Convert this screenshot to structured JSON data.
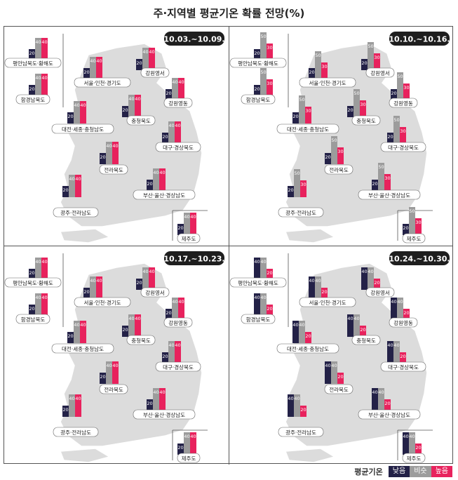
{
  "title": "주·지역별 평균기온 확률 전망(%)",
  "colors": {
    "low": "#232147",
    "normal": "#9c9c9c",
    "high": "#e8225d",
    "map_fill": "#dcdcdc",
    "map_stroke": "#ffffff"
  },
  "legend": {
    "title": "평균기온",
    "low": "낮음",
    "normal": "비슷",
    "high": "높음"
  },
  "chart_data": [
    {
      "type": "bar",
      "period": "10.03.~10.09.",
      "series_names": [
        "낮음",
        "비슷",
        "높음"
      ],
      "regions": [
        {
          "name": "평안남북도·황해도",
          "values": [
            20,
            40,
            40
          ]
        },
        {
          "name": "함경남북도",
          "values": [
            20,
            40,
            40
          ]
        },
        {
          "name": "서울·인천·경기도",
          "values": [
            20,
            40,
            40
          ]
        },
        {
          "name": "강원영서",
          "values": [
            20,
            40,
            40
          ]
        },
        {
          "name": "강원영동",
          "values": [
            20,
            40,
            40
          ]
        },
        {
          "name": "대전·세종·충청남도",
          "values": [
            20,
            40,
            40
          ]
        },
        {
          "name": "충청북도",
          "values": [
            20,
            40,
            40
          ]
        },
        {
          "name": "대구·경상북도",
          "values": [
            20,
            40,
            40
          ]
        },
        {
          "name": "전라북도",
          "values": [
            20,
            40,
            40
          ]
        },
        {
          "name": "부산·울산·경상남도",
          "values": [
            20,
            40,
            40
          ]
        },
        {
          "name": "광주·전라남도",
          "values": [
            20,
            40,
            40
          ]
        },
        {
          "name": "제주도",
          "values": [
            20,
            40,
            40
          ]
        }
      ]
    },
    {
      "type": "bar",
      "period": "10.10.~10.16.",
      "series_names": [
        "낮음",
        "비슷",
        "높음"
      ],
      "regions": [
        {
          "name": "평안남북도·황해도",
          "values": [
            20,
            50,
            30
          ]
        },
        {
          "name": "함경남북도",
          "values": [
            20,
            50,
            30
          ]
        },
        {
          "name": "서울·인천·경기도",
          "values": [
            20,
            50,
            30
          ]
        },
        {
          "name": "강원영서",
          "values": [
            20,
            50,
            30
          ]
        },
        {
          "name": "강원영동",
          "values": [
            20,
            50,
            30
          ]
        },
        {
          "name": "대전·세종·충청남도",
          "values": [
            20,
            50,
            30
          ]
        },
        {
          "name": "충청북도",
          "values": [
            20,
            50,
            30
          ]
        },
        {
          "name": "대구·경상북도",
          "values": [
            20,
            50,
            30
          ]
        },
        {
          "name": "전라북도",
          "values": [
            20,
            50,
            30
          ]
        },
        {
          "name": "부산·울산·경상남도",
          "values": [
            20,
            50,
            30
          ]
        },
        {
          "name": "광주·전라남도",
          "values": [
            20,
            50,
            30
          ]
        },
        {
          "name": "제주도",
          "values": [
            20,
            50,
            30
          ]
        }
      ]
    },
    {
      "type": "bar",
      "period": "10.17.~10.23.",
      "series_names": [
        "낮음",
        "비슷",
        "높음"
      ],
      "regions": [
        {
          "name": "평안남북도·황해도",
          "values": [
            20,
            40,
            40
          ]
        },
        {
          "name": "함경남북도",
          "values": [
            20,
            40,
            40
          ]
        },
        {
          "name": "서울·인천·경기도",
          "values": [
            20,
            40,
            40
          ]
        },
        {
          "name": "강원영서",
          "values": [
            20,
            40,
            40
          ]
        },
        {
          "name": "강원영동",
          "values": [
            20,
            40,
            40
          ]
        },
        {
          "name": "대전·세종·충청남도",
          "values": [
            20,
            40,
            40
          ]
        },
        {
          "name": "충청북도",
          "values": [
            20,
            40,
            40
          ]
        },
        {
          "name": "대구·경상북도",
          "values": [
            20,
            40,
            40
          ]
        },
        {
          "name": "전라북도",
          "values": [
            20,
            40,
            40
          ]
        },
        {
          "name": "부산·울산·경상남도",
          "values": [
            20,
            40,
            40
          ]
        },
        {
          "name": "광주·전라남도",
          "values": [
            20,
            40,
            40
          ]
        },
        {
          "name": "제주도",
          "values": [
            20,
            40,
            40
          ]
        }
      ]
    },
    {
      "type": "bar",
      "period": "10.24.~10.30.",
      "series_names": [
        "낮음",
        "비슷",
        "높음"
      ],
      "regions": [
        {
          "name": "평안남북도·황해도",
          "values": [
            40,
            40,
            20
          ]
        },
        {
          "name": "함경남북도",
          "values": [
            40,
            40,
            20
          ]
        },
        {
          "name": "서울·인천·경기도",
          "values": [
            40,
            40,
            20
          ]
        },
        {
          "name": "강원영서",
          "values": [
            40,
            40,
            20
          ]
        },
        {
          "name": "강원영동",
          "values": [
            40,
            40,
            20
          ]
        },
        {
          "name": "대전·세종·충청남도",
          "values": [
            40,
            40,
            20
          ]
        },
        {
          "name": "충청북도",
          "values": [
            40,
            40,
            20
          ]
        },
        {
          "name": "대구·경상북도",
          "values": [
            40,
            40,
            20
          ]
        },
        {
          "name": "전라북도",
          "values": [
            40,
            40,
            20
          ]
        },
        {
          "name": "부산·울산·경상남도",
          "values": [
            40,
            40,
            20
          ]
        },
        {
          "name": "광주·전라남도",
          "values": [
            40,
            40,
            20
          ]
        },
        {
          "name": "제주도",
          "values": [
            40,
            40,
            20
          ]
        }
      ]
    }
  ]
}
